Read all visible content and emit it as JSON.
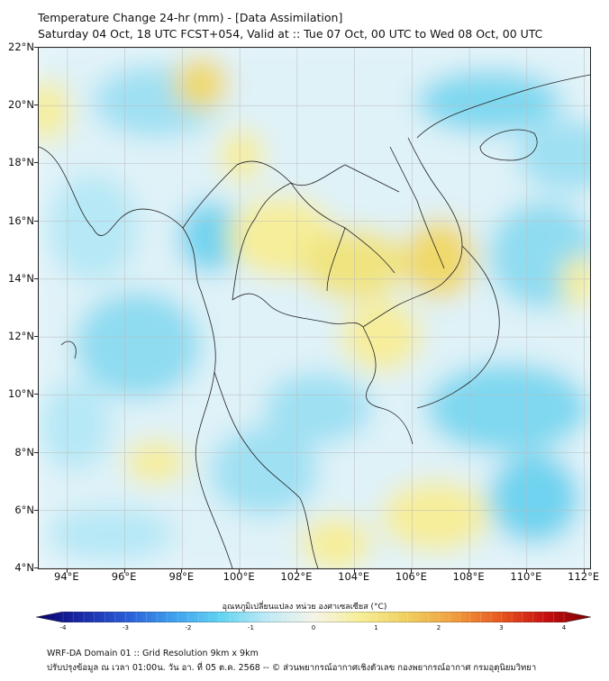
{
  "header": {
    "title": "Temperature Change 24-hr (mm) - [Data Assimilation]",
    "subtitle": "Saturday 04 Oct, 18 UTC FCST+054, Valid at :: Tue 07 Oct, 00 UTC to Wed 08 Oct, 00 UTC"
  },
  "map": {
    "lat_labels": [
      "22°N",
      "20°N",
      "18°N",
      "16°N",
      "14°N",
      "12°N",
      "10°N",
      "8°N",
      "6°N",
      "4°N"
    ],
    "lon_labels": [
      "94°E",
      "96°E",
      "98°E",
      "100°E",
      "102°E",
      "104°E",
      "106°E",
      "108°E",
      "110°E",
      "112°E"
    ],
    "lat_range": [
      4,
      22
    ],
    "lon_range": [
      93,
      112.2
    ],
    "field_colors": {
      "background": "#e9f6fb",
      "cool": "#6fd3ef",
      "cool_light": "#b6e8f6",
      "warm": "#f6ee9a",
      "warm_strong": "#f0d96a"
    }
  },
  "colorbar": {
    "title": "อุณหภูมิเปลี่ยนแปลง หน่วย องศาเซลเซียส (°C)",
    "ticks": [
      "-4",
      "-3",
      "-2",
      "-1",
      "0",
      "1",
      "2",
      "3",
      "4"
    ],
    "colors": [
      "#08006b",
      "#1a2aa8",
      "#2a5fd8",
      "#3fa2ee",
      "#62d3f2",
      "#bfeaf5",
      "#f4f4e8",
      "#f6ee98",
      "#f0d060",
      "#f0a040",
      "#e85a20",
      "#c81010",
      "#7a0000"
    ]
  },
  "footer": {
    "line1": "WRF-DA Domain 01 :: Grid Resolution 9km x 9km",
    "line2": "ปรับปรุงข้อมูล ณ เวลา 01:00น. วัน อา. ที่ 05 ต.ค. 2568 -- © ส่วนพยากรณ์อากาศเชิงตัวเลข กองพยากรณ์อากาศ กรมอุตุนิยมวิทยา"
  }
}
